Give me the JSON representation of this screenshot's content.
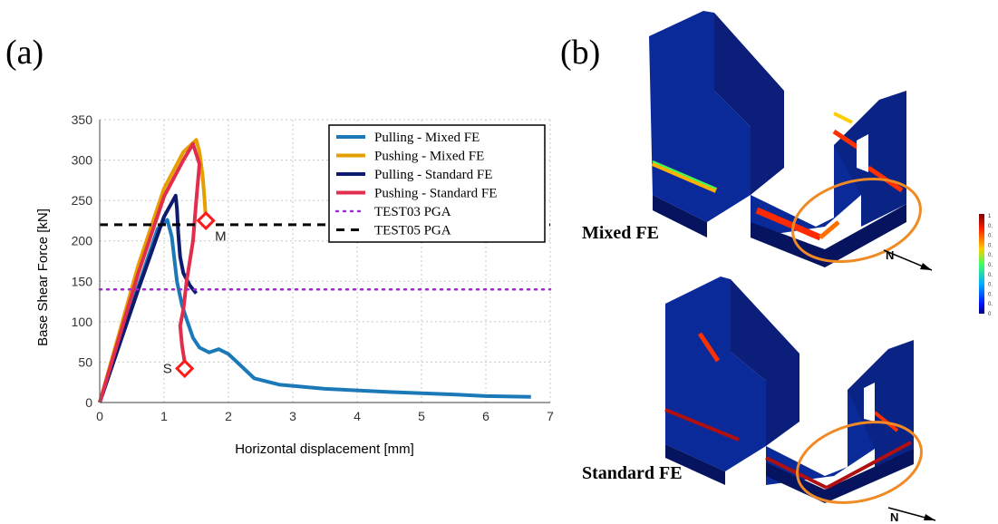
{
  "panels": {
    "a_label": "(a)",
    "b_label": "(b)"
  },
  "chart_data": {
    "type": "line",
    "title": "",
    "xlabel": "Horizontal displacement [mm]",
    "ylabel": "Base Shear Force [kN]",
    "xlim": [
      0,
      7
    ],
    "ylim": [
      0,
      350
    ],
    "xticks": [
      0,
      1,
      2,
      3,
      4,
      5,
      6,
      7
    ],
    "yticks": [
      0,
      50,
      100,
      150,
      200,
      250,
      300,
      350
    ],
    "grid": true,
    "legend_position": "top-right",
    "series": [
      {
        "name": "Pulling - Mixed FE",
        "color": "#1b79b8",
        "style": "solid",
        "x": [
          0,
          0.5,
          0.9,
          1.05,
          1.12,
          1.2,
          1.28,
          1.35,
          1.45,
          1.55,
          1.7,
          1.85,
          2.0,
          2.2,
          2.4,
          2.8,
          3.5,
          4.5,
          5.5,
          6.0,
          6.7
        ],
        "y": [
          0,
          120,
          215,
          226,
          205,
          150,
          120,
          103,
          80,
          68,
          62,
          66,
          60,
          45,
          30,
          22,
          17,
          13,
          10,
          8,
          7
        ]
      },
      {
        "name": "Pushing - Mixed FE",
        "color": "#e69f00",
        "style": "solid",
        "x": [
          0,
          0.6,
          1.0,
          1.3,
          1.5,
          1.55,
          1.6,
          1.63,
          1.65
        ],
        "y": [
          0,
          170,
          265,
          310,
          325,
          310,
          280,
          250,
          225
        ]
      },
      {
        "name": "Pulling - Standard FE",
        "color": "#0d1b6e",
        "style": "solid",
        "x": [
          0,
          0.6,
          1.0,
          1.18,
          1.2,
          1.22,
          1.25,
          1.3,
          1.4,
          1.5
        ],
        "y": [
          0,
          140,
          230,
          256,
          240,
          210,
          180,
          160,
          145,
          135
        ]
      },
      {
        "name": "Pushing - Standard FE",
        "color": "#e02e4c",
        "style": "solid",
        "x": [
          0,
          0.6,
          1.0,
          1.3,
          1.45,
          1.55,
          1.5,
          1.45,
          1.35,
          1.3,
          1.25,
          1.28,
          1.32,
          1.35
        ],
        "y": [
          0,
          160,
          255,
          300,
          320,
          295,
          250,
          200,
          150,
          115,
          95,
          70,
          50,
          42
        ]
      },
      {
        "name": "TEST03 PGA",
        "color": "#9c2bd6",
        "style": "dotted",
        "x": [
          0,
          7
        ],
        "y": [
          140,
          140
        ]
      },
      {
        "name": "TEST05 PGA",
        "color": "#000000",
        "style": "dashed",
        "x": [
          0,
          7
        ],
        "y": [
          220,
          220
        ]
      }
    ],
    "annotations": [
      {
        "text": "M",
        "x": 1.65,
        "y": 225
      },
      {
        "text": "S",
        "x": 1.32,
        "y": 42
      }
    ]
  },
  "models": {
    "mixed_label": "Mixed FE",
    "standard_label": "Standard FE",
    "north_label": "N",
    "colorbar_ticks": [
      "1",
      "0.",
      "0.",
      "0.",
      "0.",
      "0.",
      "0.",
      "0.",
      "0.",
      "0.",
      "0"
    ]
  }
}
